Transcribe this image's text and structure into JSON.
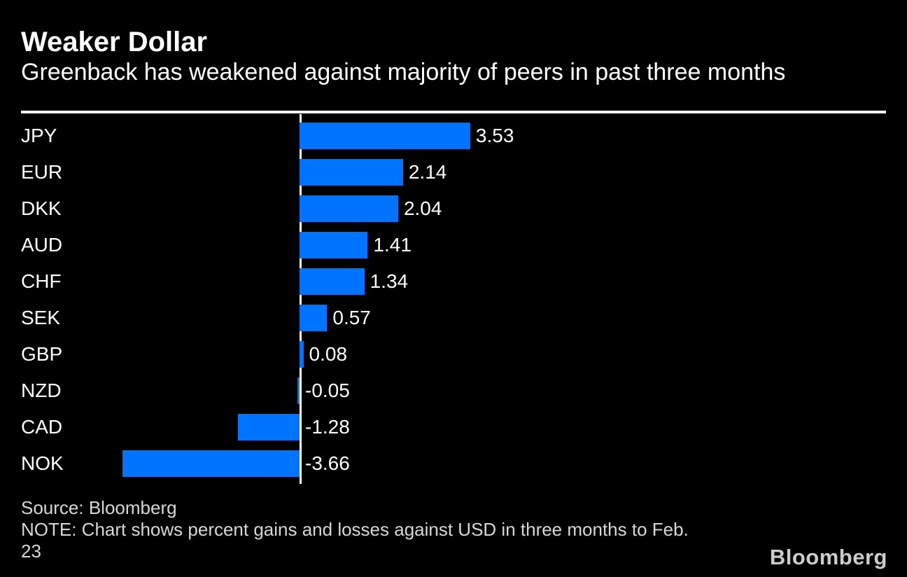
{
  "header": {
    "title": "Weaker Dollar",
    "subtitle": "Greenback has weakened against majority of peers in past three months"
  },
  "chart_data": {
    "type": "bar",
    "orientation": "horizontal",
    "title": "Weaker Dollar",
    "subtitle": "Greenback has weakened against majority of peers in past three months",
    "categories": [
      "JPY",
      "EUR",
      "DKK",
      "AUD",
      "CHF",
      "SEK",
      "GBP",
      "NZD",
      "CAD",
      "NOK"
    ],
    "values": [
      3.53,
      2.14,
      2.04,
      1.41,
      1.34,
      0.57,
      0.08,
      -0.05,
      -1.28,
      -3.66
    ],
    "value_labels": [
      "3.53",
      "2.14",
      "2.04",
      "1.41",
      "1.34",
      "0.57",
      "0.08",
      "-0.05",
      "-1.28",
      "-3.66"
    ],
    "unit": "percent",
    "baseline": 0,
    "xlim": [
      -5.76,
      12.13
    ],
    "grid": false,
    "legend": false,
    "xlabel": "",
    "ylabel": "",
    "bar_color": "#0073ff"
  },
  "footer": {
    "source": "Source: Bloomberg",
    "note_lines": [
      "NOTE: Chart shows percent gains and losses against USD in three months to Feb.",
      "23"
    ],
    "logo": "Bloomberg"
  },
  "colors": {
    "background": "#000000",
    "bar": "#0073ff",
    "text": "#ffffff",
    "muted_text": "#d7d7d7",
    "logo_text": "#cccccc",
    "rule": "#ffffff"
  }
}
